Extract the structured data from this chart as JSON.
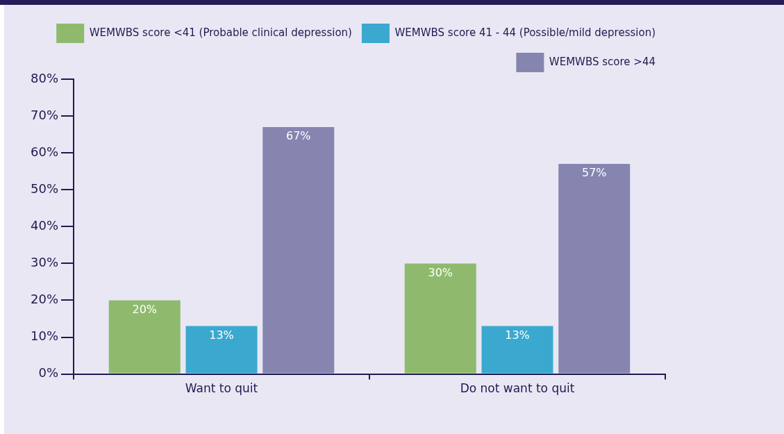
{
  "chart_data": {
    "type": "bar",
    "categories": [
      "Want to quit",
      "Do not want to quit"
    ],
    "series": [
      {
        "name": "WEMWBS score <41 (Probable clinical depression)",
        "color": "#8fba6e",
        "values": [
          20,
          30
        ],
        "value_labels": [
          "20%",
          "30%"
        ]
      },
      {
        "name": "WEMWBS score 41 - 44 (Possible/mild depression)",
        "color": "#3ba8cf",
        "values": [
          13,
          13
        ],
        "value_labels": [
          "13%",
          "13%"
        ]
      },
      {
        "name": "WEMWBS score >44",
        "color": "#8585b0",
        "values": [
          67,
          57
        ],
        "value_labels": [
          "67%",
          "57%"
        ]
      }
    ],
    "ylim": [
      0,
      80
    ],
    "yticks": [
      {
        "value": 0,
        "label": "0%"
      },
      {
        "value": 10,
        "label": "10%"
      },
      {
        "value": 20,
        "label": "20%"
      },
      {
        "value": 30,
        "label": "30%"
      },
      {
        "value": 40,
        "label": "40%"
      },
      {
        "value": 50,
        "label": "50%"
      },
      {
        "value": 60,
        "label": "60%"
      },
      {
        "value": 70,
        "label": "70%"
      },
      {
        "value": 80,
        "label": "80%"
      }
    ],
    "legend": "top right"
  }
}
